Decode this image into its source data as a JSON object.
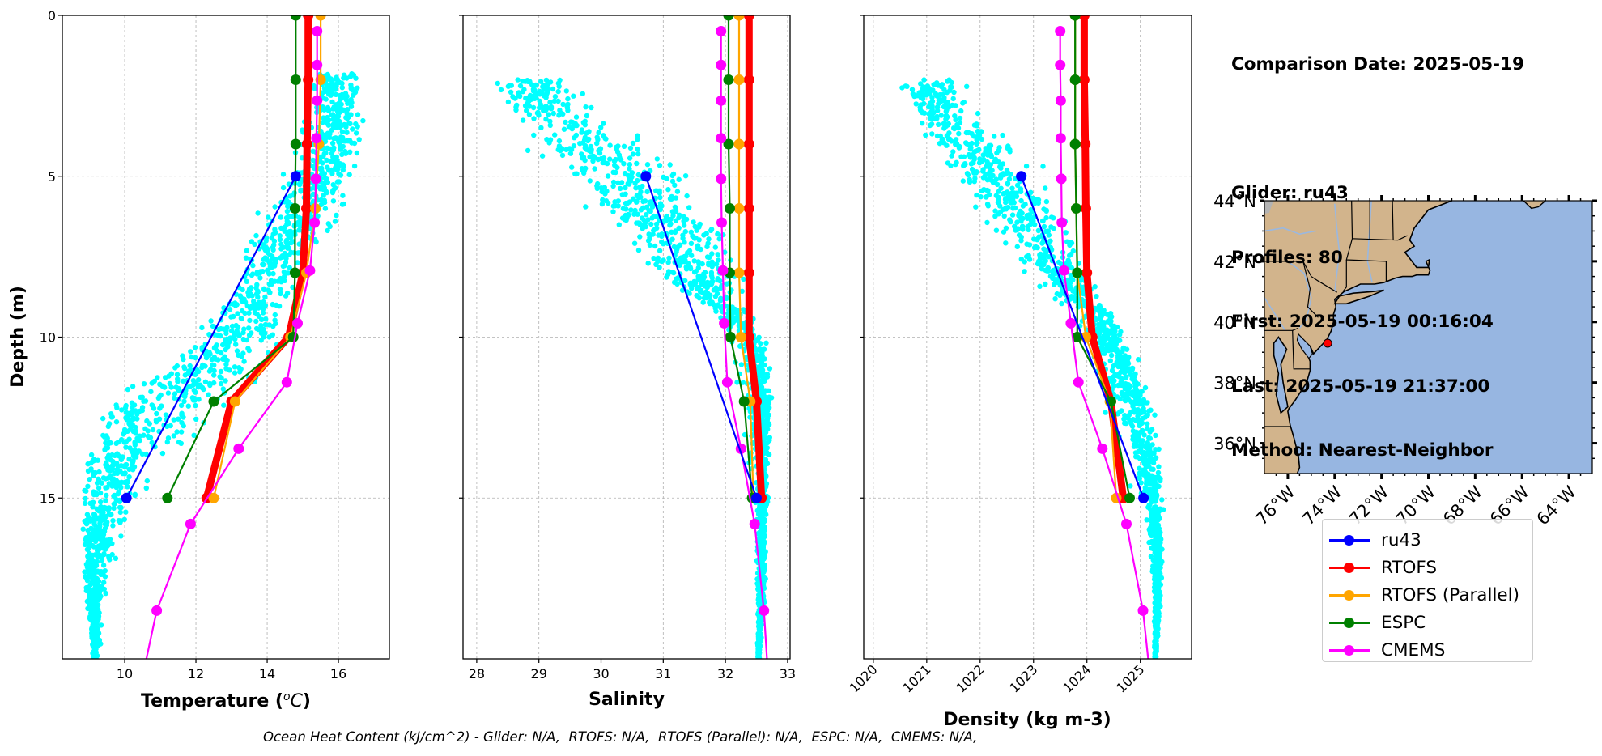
{
  "info": {
    "comparison_date": "Comparison Date: 2025-05-19",
    "glider": "Glider: ru43",
    "profiles": "Profiles: 80",
    "first": "First: 2025-05-19 00:16:04",
    "last": "Last: 2025-05-19 21:37:00",
    "method": "Method: Nearest-Neighbor"
  },
  "footer": {
    "ohc_text": "Ocean Heat Content (kJ/cm^2) - Glider: N/A,  RTOFS: N/A,  RTOFS (Parallel): N/A,  ESPC: N/A,  CMEMS: N/A,"
  },
  "legend": {
    "items": [
      {
        "label": "ru43",
        "color": "#0000ff"
      },
      {
        "label": "RTOFS",
        "color": "#ff0000"
      },
      {
        "label": "RTOFS (Parallel)",
        "color": "#ffa500"
      },
      {
        "label": "ESPC",
        "color": "#008000"
      },
      {
        "label": "CMEMS",
        "color": "#ff00ff"
      }
    ]
  },
  "colors": {
    "glider_scatter": "#00ffff",
    "ru43": "#0000ff",
    "rtofs": "#ff0000",
    "rtofs_parallel": "#ffa500",
    "espc": "#008000",
    "cmems": "#ff00ff",
    "land": "#d2b48c",
    "ocean": "#97b6e1",
    "glider_position": "#ff0000"
  },
  "chart_data": [
    {
      "type": "line",
      "id": "temperature",
      "xlabel": "Temperature (°C)",
      "ylabel": "Depth (m)",
      "xlim": [
        8.25,
        17.43
      ],
      "ylim": [
        20,
        0
      ],
      "xticks": [
        10,
        12,
        14,
        16
      ],
      "yticks": [
        0,
        5,
        10,
        15
      ],
      "grid": true,
      "scatter": {
        "name": "glider profiles (ru43)",
        "description": "~1600 cyan points; warm surface layer 14.5–17 °C at 2–7 m, cooling to ~9 °C at 15–20 m",
        "envelope": [
          {
            "depth": 1.8,
            "tmin": 15.1,
            "tmax": 16.9
          },
          {
            "depth": 4,
            "tmin": 14.6,
            "tmax": 17.0
          },
          {
            "depth": 6,
            "tmin": 13.5,
            "tmax": 16.5
          },
          {
            "depth": 8,
            "tmin": 12.8,
            "tmax": 15.2
          },
          {
            "depth": 10,
            "tmin": 11.6,
            "tmax": 14.6
          },
          {
            "depth": 12,
            "tmin": 9.4,
            "tmax": 13.6
          },
          {
            "depth": 14,
            "tmin": 8.8,
            "tmax": 11.5
          },
          {
            "depth": 16,
            "tmin": 8.8,
            "tmax": 10.2
          },
          {
            "depth": 18,
            "tmin": 8.9,
            "tmax": 9.6
          },
          {
            "depth": 20,
            "tmin": 9.1,
            "tmax": 9.3
          }
        ]
      },
      "series": [
        {
          "name": "ru43",
          "depth": [
            5,
            15
          ],
          "values": [
            14.8,
            10.05
          ]
        },
        {
          "name": "RTOFS",
          "depth": [
            0,
            2,
            4,
            6,
            8,
            10,
            12,
            15
          ],
          "values": [
            15.15,
            15.15,
            15.12,
            15.1,
            15.0,
            14.6,
            13.0,
            12.3
          ]
        },
        {
          "name": "RTOFS (Parallel)",
          "depth": [
            0,
            2,
            4,
            6,
            8,
            10,
            12,
            15
          ],
          "values": [
            15.5,
            15.5,
            15.45,
            15.35,
            15.1,
            14.65,
            13.1,
            12.5
          ]
        },
        {
          "name": "ESPC",
          "depth": [
            0,
            2,
            4,
            6,
            8,
            10,
            12,
            15
          ],
          "values": [
            14.8,
            14.8,
            14.8,
            14.78,
            14.78,
            14.73,
            12.5,
            11.2
          ]
        },
        {
          "name": "CMEMS",
          "depth": [
            0.49,
            1.54,
            2.65,
            3.82,
            5.08,
            6.44,
            7.93,
            9.57,
            11.4,
            13.47,
            15.81,
            18.5,
            21.6
          ],
          "values": [
            15.4,
            15.4,
            15.4,
            15.38,
            15.37,
            15.33,
            15.2,
            14.85,
            14.55,
            13.2,
            11.85,
            10.9,
            10.3
          ]
        }
      ]
    },
    {
      "type": "line",
      "id": "salinity",
      "xlabel": "Salinity",
      "ylabel": "",
      "xlim": [
        27.78,
        33.04
      ],
      "ylim": [
        20,
        0
      ],
      "xticks": [
        28,
        29,
        30,
        31,
        32,
        33
      ],
      "yticks": [
        0,
        5,
        10,
        15
      ],
      "grid": true,
      "scatter": {
        "name": "glider profiles (ru43)",
        "description": "fresher surface water 28–30 at 2–4 m trending to ~32.6 at 12–20 m",
        "envelope": [
          {
            "depth": 2,
            "smin": 28.0,
            "smax": 29.8
          },
          {
            "depth": 3,
            "smin": 28.1,
            "smax": 30.0
          },
          {
            "depth": 4,
            "smin": 28.4,
            "smax": 31.2
          },
          {
            "depth": 5,
            "smin": 29.1,
            "smax": 31.7
          },
          {
            "depth": 6,
            "smin": 29.5,
            "smax": 32.0
          },
          {
            "depth": 7,
            "smin": 30.2,
            "smax": 32.3
          },
          {
            "depth": 8,
            "smin": 30.6,
            "smax": 32.4
          },
          {
            "depth": 9,
            "smin": 31.4,
            "smax": 32.4
          },
          {
            "depth": 10,
            "smin": 31.9,
            "smax": 32.7
          },
          {
            "depth": 12,
            "smin": 32.1,
            "smax": 32.8
          },
          {
            "depth": 15,
            "smin": 32.4,
            "smax": 32.7
          },
          {
            "depth": 18,
            "smin": 32.45,
            "smax": 32.65
          },
          {
            "depth": 20,
            "smin": 32.5,
            "smax": 32.55
          }
        ]
      },
      "series": [
        {
          "name": "ru43",
          "depth": [
            5,
            15
          ],
          "values": [
            30.72,
            32.5
          ]
        },
        {
          "name": "RTOFS",
          "depth": [
            0,
            2,
            4,
            6,
            8,
            10,
            12,
            15
          ],
          "values": [
            32.38,
            32.38,
            32.38,
            32.38,
            32.38,
            32.38,
            32.5,
            32.58
          ]
        },
        {
          "name": "RTOFS (Parallel)",
          "depth": [
            0,
            2,
            4,
            6,
            8,
            10,
            12,
            15
          ],
          "values": [
            32.22,
            32.22,
            32.22,
            32.22,
            32.22,
            32.25,
            32.4,
            32.45
          ]
        },
        {
          "name": "ESPC",
          "depth": [
            0,
            2,
            4,
            6,
            8,
            10,
            12,
            15
          ],
          "values": [
            32.05,
            32.05,
            32.05,
            32.07,
            32.07,
            32.08,
            32.3,
            32.43
          ]
        },
        {
          "name": "CMEMS",
          "depth": [
            0.49,
            1.54,
            2.65,
            3.82,
            5.08,
            6.44,
            7.93,
            9.57,
            11.4,
            13.47,
            15.81,
            18.5,
            21.6
          ],
          "values": [
            31.93,
            31.93,
            31.93,
            31.93,
            31.93,
            31.94,
            31.96,
            31.98,
            32.03,
            32.25,
            32.47,
            32.62,
            32.72
          ]
        }
      ]
    },
    {
      "type": "line",
      "id": "density",
      "xlabel": "Density (kg m-3)",
      "ylabel": "",
      "xlim": [
        1019.82,
        1025.96
      ],
      "ylim": [
        20,
        0
      ],
      "xticks": [
        1020,
        1021,
        1022,
        1023,
        1024,
        1025
      ],
      "yticks": [
        0,
        5,
        10,
        15
      ],
      "grid": true,
      "scatter": {
        "name": "glider profiles (ru43)",
        "description": "lighter surface water 1020.5–1022.5 at 2–4 m trending to ~1025.2 at 14–20 m",
        "envelope": [
          {
            "depth": 2,
            "dmin": 1020.4,
            "dmax": 1021.8
          },
          {
            "depth": 3,
            "dmin": 1020.5,
            "dmax": 1022.0
          },
          {
            "depth": 4,
            "dmin": 1020.8,
            "dmax": 1022.8
          },
          {
            "depth": 5,
            "dmin": 1021.2,
            "dmax": 1023.4
          },
          {
            "depth": 6,
            "dmin": 1021.6,
            "dmax": 1023.8
          },
          {
            "depth": 7,
            "dmin": 1022.2,
            "dmax": 1024.0
          },
          {
            "depth": 8,
            "dmin": 1022.7,
            "dmax": 1024.2
          },
          {
            "depth": 9,
            "dmin": 1023.4,
            "dmax": 1024.5
          },
          {
            "depth": 10,
            "dmin": 1023.7,
            "dmax": 1024.8
          },
          {
            "depth": 12,
            "dmin": 1024.1,
            "dmax": 1025.3
          },
          {
            "depth": 14,
            "dmin": 1024.6,
            "dmax": 1025.45
          },
          {
            "depth": 16,
            "dmin": 1025.0,
            "dmax": 1025.45
          },
          {
            "depth": 18,
            "dmin": 1025.2,
            "dmax": 1025.4
          },
          {
            "depth": 20,
            "dmin": 1025.25,
            "dmax": 1025.3
          }
        ]
      },
      "series": [
        {
          "name": "ru43",
          "depth": [
            5,
            15
          ],
          "values": [
            1022.77,
            1025.06
          ]
        },
        {
          "name": "RTOFS",
          "depth": [
            0,
            2,
            4,
            6,
            8,
            10,
            12,
            15
          ],
          "values": [
            1023.95,
            1023.95,
            1023.97,
            1023.98,
            1024.0,
            1024.1,
            1024.45,
            1024.68
          ]
        },
        {
          "name": "RTOFS (Parallel)",
          "depth": [
            0,
            2,
            4,
            6,
            8,
            10,
            12,
            15
          ],
          "values": [
            1023.78,
            1023.78,
            1023.78,
            1023.8,
            1023.82,
            1023.98,
            1024.43,
            1024.55
          ]
        },
        {
          "name": "ESPC",
          "depth": [
            0,
            2,
            4,
            6,
            8,
            10,
            12,
            15
          ],
          "values": [
            1023.78,
            1023.78,
            1023.78,
            1023.8,
            1023.82,
            1023.82,
            1024.45,
            1024.8
          ]
        },
        {
          "name": "CMEMS",
          "depth": [
            0.49,
            1.54,
            2.65,
            3.82,
            5.08,
            6.44,
            7.93,
            9.57,
            11.4,
            13.47,
            15.81,
            18.5,
            21.6
          ],
          "values": [
            1023.5,
            1023.5,
            1023.51,
            1023.51,
            1023.52,
            1023.53,
            1023.57,
            1023.7,
            1023.84,
            1024.29,
            1024.74,
            1025.05,
            1025.25
          ]
        }
      ]
    },
    {
      "type": "map",
      "id": "location-map",
      "lon_ticks": [
        "76°W",
        "74°W",
        "72°W",
        "70°W",
        "68°W",
        "66°W",
        "64°W"
      ],
      "lat_ticks": [
        "44°N",
        "42°N",
        "40°N",
        "38°N",
        "36°N"
      ],
      "lon_range": [
        -77,
        -63
      ],
      "lat_range": [
        35,
        44
      ],
      "glider_position": {
        "lon": -74.3,
        "lat": 39.3
      }
    }
  ]
}
